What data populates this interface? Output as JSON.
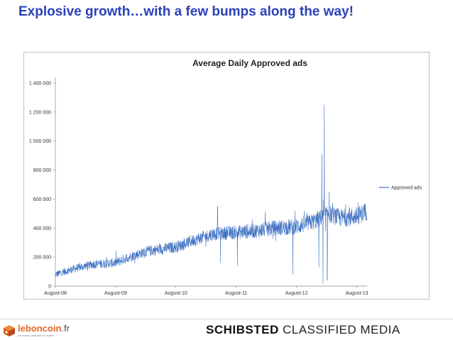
{
  "slide": {
    "title": "Explosive growth…with a few bumps along the way!"
  },
  "chart_data": {
    "type": "line",
    "title": "Average Daily Approved ads",
    "xlabel": "",
    "ylabel": "",
    "x_start_year": 2008.58,
    "x_end_year": 2013.75,
    "x_tick_labels": [
      "August-08",
      "August-09",
      "August-10",
      "August-11",
      "August-12",
      "August-13"
    ],
    "x_tick_years": [
      2008.58,
      2009.58,
      2010.58,
      2011.58,
      2012.58,
      2013.58
    ],
    "ylim": [
      0,
      1400000
    ],
    "y_ticks": [
      0,
      200000,
      400000,
      600000,
      800000,
      1000000,
      1200000,
      1400000
    ],
    "y_tick_labels": [
      "0",
      "200 000",
      "400 000",
      "600 000",
      "800 000",
      "1 000 000",
      "1 200 000",
      "1 400 000"
    ],
    "legend_position": "right",
    "series": [
      {
        "name": "Approved ads",
        "color": "#3b6fc2",
        "trend_years": [
          2008.58,
          2008.9,
          2009.2,
          2009.58,
          2009.8,
          2010.1,
          2010.58,
          2010.9,
          2011.2,
          2011.58,
          2011.9,
          2012.2,
          2012.58,
          2012.9,
          2013.1,
          2013.3,
          2013.58,
          2013.75
        ],
        "trend_values": [
          80000,
          120000,
          150000,
          160000,
          200000,
          240000,
          270000,
          320000,
          360000,
          370000,
          380000,
          400000,
          410000,
          450000,
          500000,
          470000,
          480000,
          520000
        ],
        "noise_amplitude": 45000,
        "events": [
          {
            "year": 2011.27,
            "value": 550000
          },
          {
            "year": 2011.32,
            "value": 160000
          },
          {
            "year": 2011.6,
            "value": 140000
          },
          {
            "year": 2012.52,
            "value": 80000
          },
          {
            "year": 2012.95,
            "value": 130000
          },
          {
            "year": 2013.0,
            "value": 910000
          },
          {
            "year": 2013.02,
            "value": 20000
          },
          {
            "year": 2013.04,
            "value": 1250000
          },
          {
            "year": 2013.06,
            "value": 380000
          },
          {
            "year": 2013.09,
            "value": 40000
          },
          {
            "year": 2013.12,
            "value": 650000
          }
        ]
      }
    ]
  },
  "footer": {
    "left_logo_name": "leboncoin",
    "left_logo_tld": ".fr",
    "left_logo_tagline": "annonces gratuites et faciles",
    "right_logo_strong": "SCHIBSTED",
    "right_logo_light": "CLASSIFIED MEDIA",
    "brand_orange": "#e1672a",
    "title_blue": "#2a41b8"
  }
}
